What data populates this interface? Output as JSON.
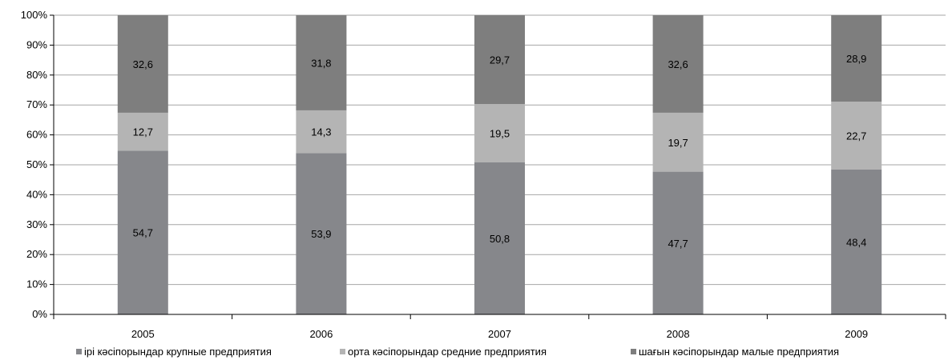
{
  "chart_data": {
    "type": "bar",
    "stacked": "percent",
    "categories": [
      "2005",
      "2006",
      "2007",
      "2008",
      "2009"
    ],
    "series": [
      {
        "name": "ірі кәсіпорындар крупные предприятия",
        "values": [
          54.7,
          53.9,
          50.8,
          47.7,
          48.4
        ],
        "color": "#86878b"
      },
      {
        "name": "орта кәсіпорындар средние предприятия",
        "values": [
          12.7,
          14.3,
          19.5,
          19.7,
          22.7
        ],
        "color": "#b4b4b4"
      },
      {
        "name": "шағын кәсіпорындар малые предприятия",
        "values": [
          32.6,
          31.8,
          29.7,
          32.6,
          28.9
        ],
        "color": "#7e7e7e"
      }
    ],
    "yticks": [
      "0%",
      "10%",
      "20%",
      "30%",
      "40%",
      "50%",
      "60%",
      "70%",
      "80%",
      "90%",
      "100%"
    ],
    "ylim": [
      0,
      100
    ],
    "grid": true,
    "legend_position": "bottom"
  }
}
